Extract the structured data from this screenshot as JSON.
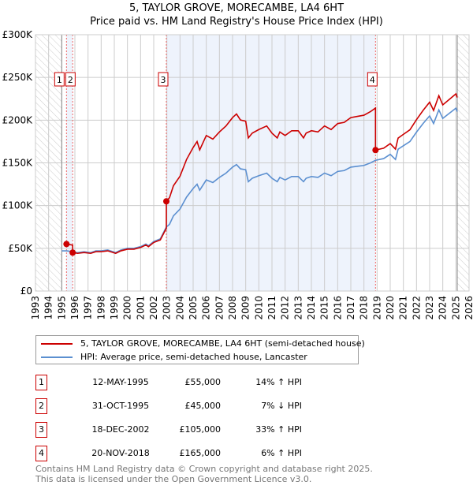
{
  "header": {
    "title": "5, TAYLOR GROVE, MORECAMBE, LA4 6HT",
    "subtitle": "Price paid vs. HM Land Registry's House Price Index (HPI)"
  },
  "chart_data": {
    "type": "line",
    "title": "5, TAYLOR GROVE, MORECAMBE, LA4 6HT",
    "ylim": [
      0,
      300000
    ],
    "xlim": [
      1993,
      2026
    ],
    "y_ticks": [
      {
        "v": 0,
        "label": "£0"
      },
      {
        "v": 50000,
        "label": "£50K"
      },
      {
        "v": 100000,
        "label": "£100K"
      },
      {
        "v": 150000,
        "label": "£150K"
      },
      {
        "v": 200000,
        "label": "£200K"
      },
      {
        "v": 250000,
        "label": "£250K"
      },
      {
        "v": 300000,
        "label": "£300K"
      }
    ],
    "x_ticks": [
      "1993",
      "1994",
      "1995",
      "1996",
      "1997",
      "1998",
      "1999",
      "2000",
      "2001",
      "2002",
      "2003",
      "2004",
      "2005",
      "2006",
      "2007",
      "2008",
      "2009",
      "2010",
      "2011",
      "2012",
      "2013",
      "2014",
      "2015",
      "2016",
      "2017",
      "2018",
      "2019",
      "2020",
      "2021",
      "2022",
      "2023",
      "2024",
      "2025",
      "2026"
    ],
    "grid": true,
    "hatched_before": 1995.0,
    "hatched_after": 2025.1,
    "colors": {
      "property": "#cc0000",
      "hpi": "#5b8fd0",
      "shade": "#eef3fc"
    },
    "hpi_series": {
      "name": "HPI: Average price, semi-detached house, Lancaster",
      "x": [
        1995.0,
        1995.4,
        1995.8,
        1996.2,
        1996.7,
        1997.2,
        1997.6,
        1998.0,
        1998.5,
        1998.9,
        1999.1,
        1999.5,
        2000.0,
        2000.5,
        2001.0,
        2001.4,
        2001.6,
        2002.0,
        2002.5,
        2002.96,
        2003.2,
        2003.5,
        2004.0,
        2004.5,
        2005.0,
        2005.3,
        2005.5,
        2006.0,
        2006.5,
        2007.0,
        2007.5,
        2008.0,
        2008.3,
        2008.6,
        2009.0,
        2009.2,
        2009.5,
        2010.0,
        2010.6,
        2011.0,
        2011.4,
        2011.6,
        2012.0,
        2012.5,
        2013.0,
        2013.4,
        2013.6,
        2014.0,
        2014.5,
        2015.0,
        2015.5,
        2016.0,
        2016.5,
        2017.0,
        2017.5,
        2018.0,
        2018.5,
        2018.88,
        2019.5,
        2020.0,
        2020.4,
        2020.6,
        2021.0,
        2021.5,
        2022.0,
        2022.5,
        2023.0,
        2023.3,
        2023.7,
        2024.0,
        2024.5,
        2025.0,
        2025.1
      ],
      "y": [
        47000,
        47000,
        46000,
        45000,
        46000,
        45000,
        47000,
        47000,
        48000,
        46000,
        45000,
        48000,
        50000,
        50000,
        52000,
        55000,
        53000,
        58000,
        61000,
        75000,
        78000,
        88000,
        96000,
        110000,
        120000,
        125000,
        118000,
        130000,
        127000,
        133000,
        138000,
        145000,
        148000,
        143000,
        142000,
        128000,
        132000,
        135000,
        138000,
        132000,
        128000,
        133000,
        130000,
        134000,
        134000,
        128000,
        132000,
        134000,
        133000,
        138000,
        135000,
        140000,
        141000,
        145000,
        146000,
        147000,
        150000,
        153000,
        155000,
        160000,
        154000,
        166000,
        170000,
        175000,
        186000,
        196000,
        205000,
        196000,
        212000,
        202000,
        208000,
        214000,
        210000
      ]
    },
    "property_series": {
      "name": "5, TAYLOR GROVE, MORECAMBE, LA4 6HT (semi-detached house)"
    },
    "sales": [
      {
        "n": "1",
        "x": 1995.36,
        "date": "12-MAY-1995",
        "price": 55000,
        "price_label": "£55,000",
        "hpi_label": "14% ↑ HPI"
      },
      {
        "n": "2",
        "x": 1995.83,
        "date": "31-OCT-1995",
        "price": 45000,
        "price_label": "£45,000",
        "hpi_label": "7% ↓ HPI"
      },
      {
        "n": "3",
        "x": 2002.96,
        "date": "18-DEC-2002",
        "price": 105000,
        "price_label": "£105,000",
        "hpi_label": "33% ↑ HPI"
      },
      {
        "n": "4",
        "x": 2018.88,
        "date": "20-NOV-2018",
        "price": 165000,
        "price_label": "£165,000",
        "hpi_label": "6% ↑ HPI"
      }
    ]
  },
  "legend": {
    "property": "5, TAYLOR GROVE, MORECAMBE, LA4 6HT (semi-detached house)",
    "hpi": "HPI: Average price, semi-detached house, Lancaster"
  },
  "footer": {
    "line1": "Contains HM Land Registry data © Crown copyright and database right 2025.",
    "line2": "This data is licensed under the Open Government Licence v3.0."
  }
}
